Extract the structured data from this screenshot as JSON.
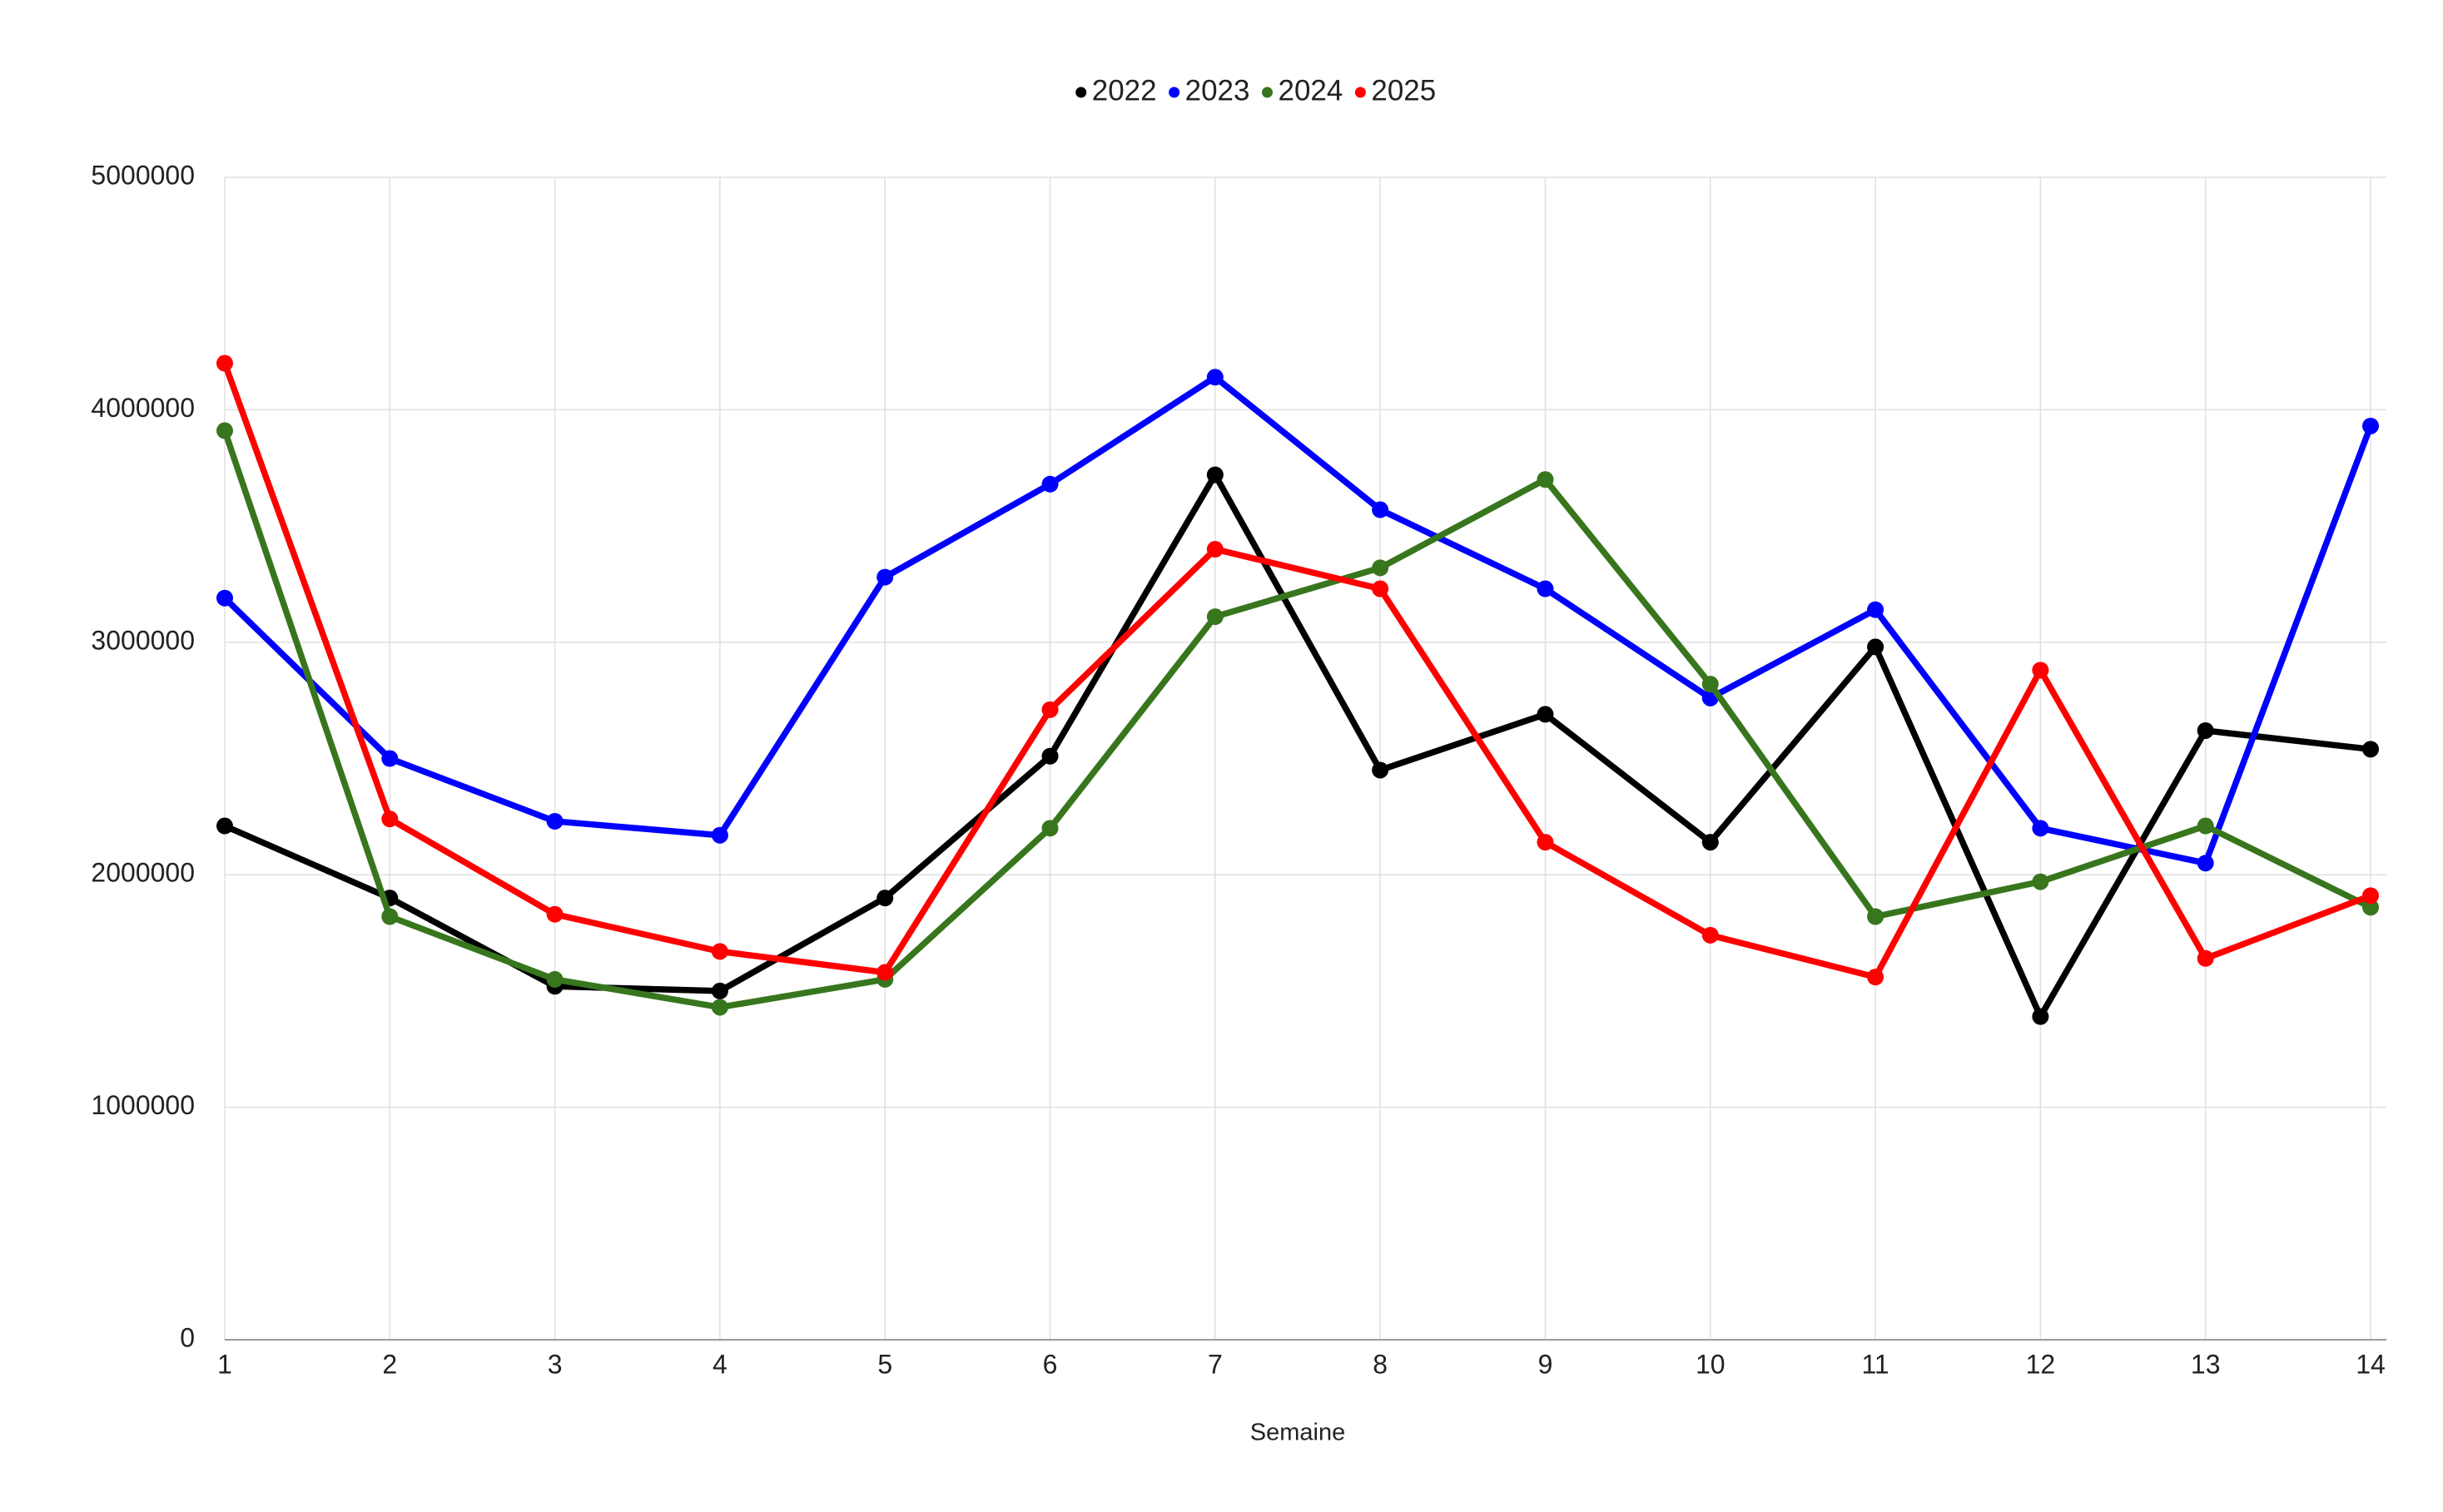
{
  "chart_data": {
    "type": "line",
    "x_label": "Semaine",
    "x": [
      1,
      2,
      3,
      4,
      5,
      6,
      7,
      8,
      9,
      10,
      11,
      12,
      13,
      14
    ],
    "series": [
      {
        "name": "2022",
        "color": "#000000",
        "values": [
          2210000,
          1900000,
          1520000,
          1500000,
          1900000,
          2510000,
          3720000,
          2450000,
          2690000,
          2140000,
          2980000,
          1390000,
          2620000,
          2540000
        ]
      },
      {
        "name": "2023",
        "color": "#0000ff",
        "values": [
          3190000,
          2500000,
          2230000,
          2170000,
          3280000,
          3680000,
          4140000,
          3570000,
          3230000,
          2760000,
          3140000,
          2200000,
          2050000,
          3930000
        ]
      },
      {
        "name": "2024",
        "color": "#38761d",
        "values": [
          3910000,
          1820000,
          1550000,
          1430000,
          1550000,
          2200000,
          3110000,
          3320000,
          3700000,
          2820000,
          1820000,
          1970000,
          2210000,
          1860000
        ]
      },
      {
        "name": "2025",
        "color": "#ff0000",
        "values": [
          4200000,
          2240000,
          1830000,
          1670000,
          1580000,
          2710000,
          3400000,
          3230000,
          2140000,
          1740000,
          1560000,
          2880000,
          1640000,
          1910000
        ]
      }
    ],
    "xlim": [
      1,
      14
    ],
    "xticks": [
      1,
      2,
      3,
      4,
      5,
      6,
      7,
      8,
      9,
      10,
      11,
      12,
      13,
      14
    ],
    "ylim": [
      0,
      5000000
    ],
    "yticks": [
      0,
      1000000,
      2000000,
      3000000,
      4000000,
      5000000
    ],
    "grid": true,
    "legend": "top"
  }
}
